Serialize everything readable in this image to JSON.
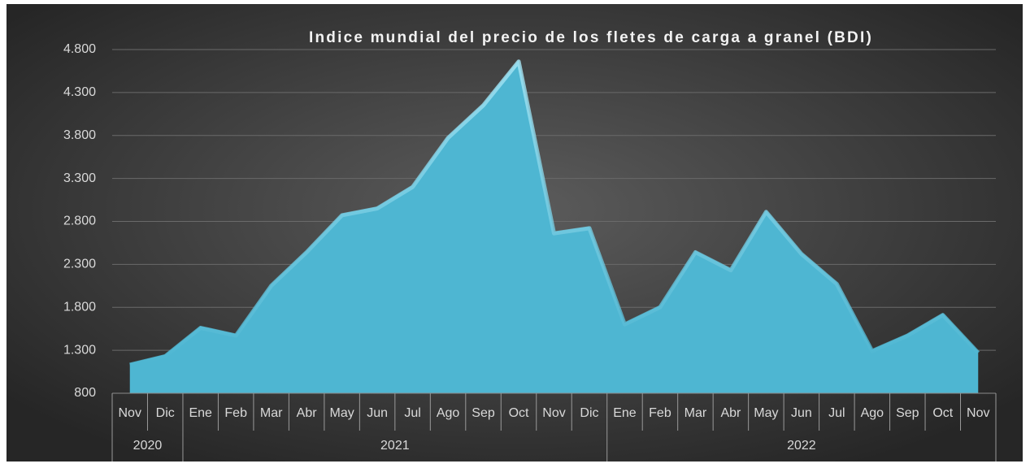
{
  "chart_data": {
    "type": "area",
    "title": "Indice mundial del precio de los fletes de carga a granel (BDI)",
    "categories": [
      "Nov",
      "Dic",
      "Ene",
      "Feb",
      "Mar",
      "Abr",
      "May",
      "Jun",
      "Jul",
      "Ago",
      "Sep",
      "Oct",
      "Nov",
      "Dic",
      "Ene",
      "Feb",
      "Mar",
      "Abr",
      "May",
      "Jun",
      "Jul",
      "Ago",
      "Sep",
      "Oct",
      "Nov"
    ],
    "category_groups": [
      {
        "label": "2020",
        "count": 2
      },
      {
        "label": "2021",
        "count": 12
      },
      {
        "label": "2022",
        "count": 11
      }
    ],
    "values": [
      1150,
      1250,
      1580,
      1490,
      2070,
      2460,
      2890,
      2970,
      3220,
      3790,
      4170,
      4680,
      2680,
      2740,
      1620,
      1820,
      2460,
      2250,
      2930,
      2440,
      2090,
      1310,
      1490,
      1730,
      1290
    ],
    "color": "#4eb6d2",
    "ylim": [
      800,
      4800
    ],
    "yticks": [
      800,
      {
        "value": 1300,
        "label": "1.300"
      },
      {
        "value": 1800,
        "label": "1.800"
      },
      {
        "value": 2300,
        "label": "2.300"
      },
      {
        "value": 2800,
        "label": "2.800"
      },
      {
        "value": 3300,
        "label": "3.300"
      },
      {
        "value": 3800,
        "label": "3.800"
      },
      {
        "value": 4300,
        "label": "4.300"
      },
      {
        "value": 4800,
        "label": "4.800"
      }
    ],
    "grid": true
  }
}
